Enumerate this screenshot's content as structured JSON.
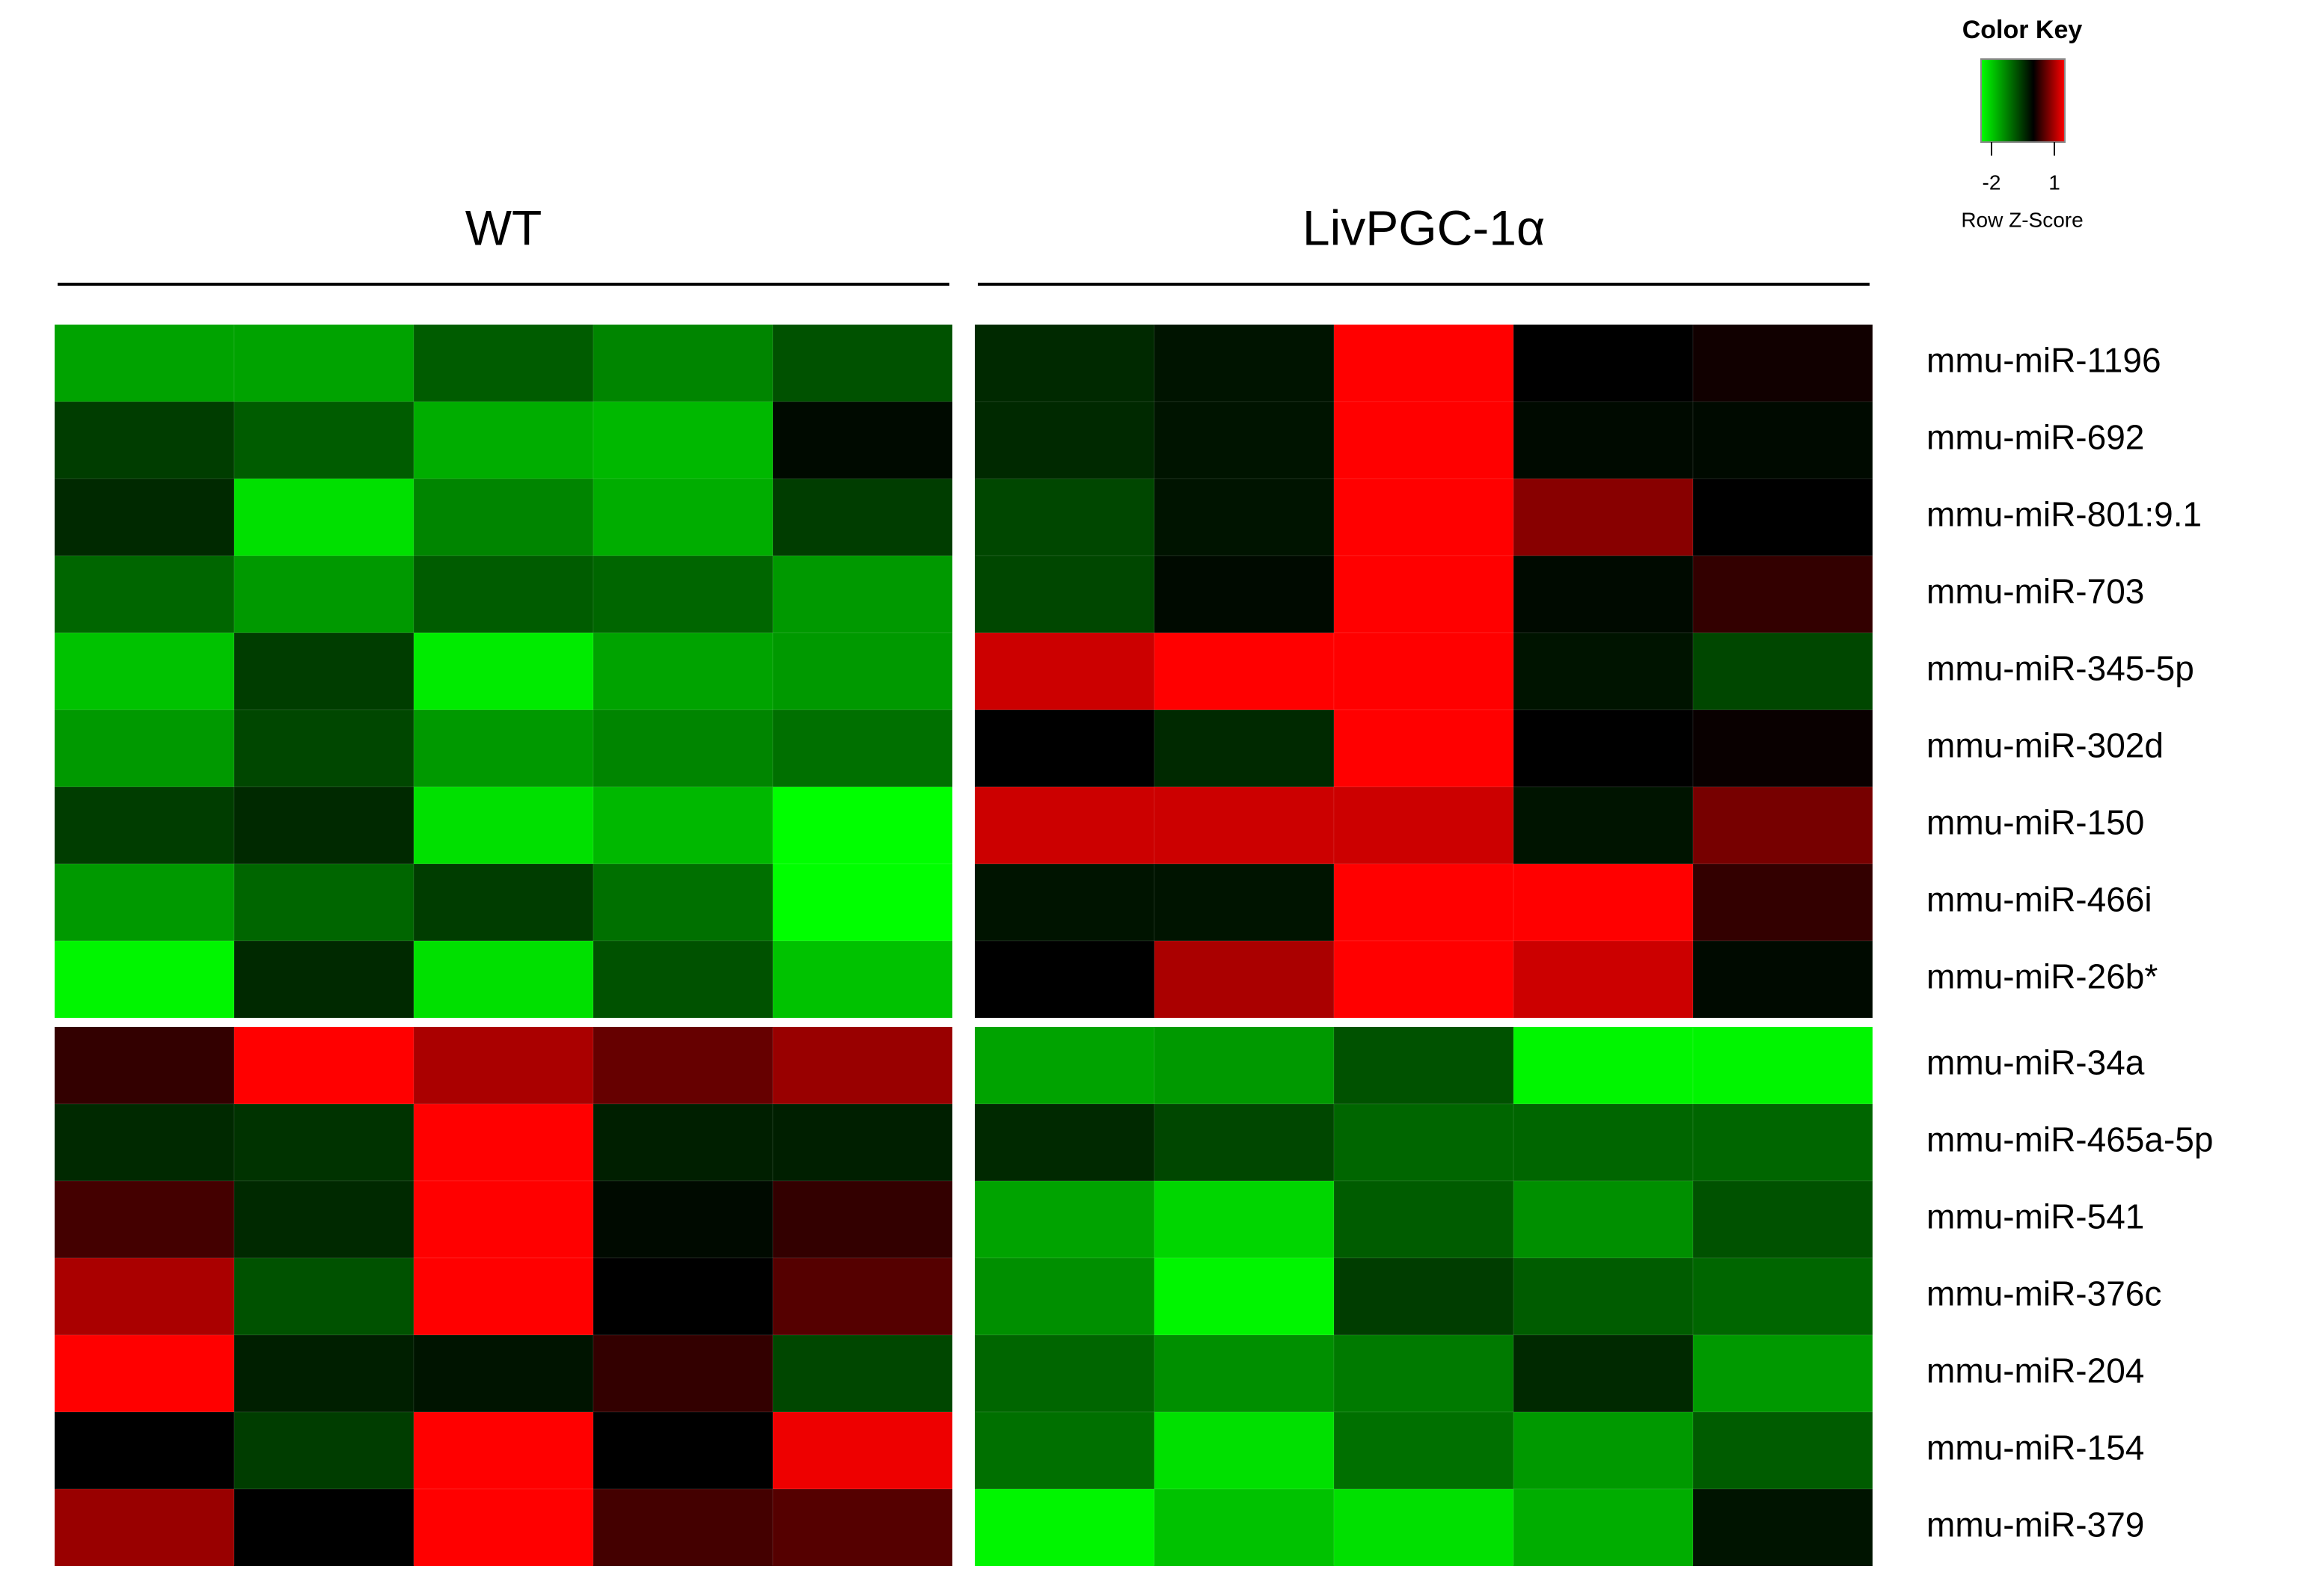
{
  "chart_data": {
    "type": "heatmap",
    "x_groups": [
      "WT",
      "LivPGC-1α"
    ],
    "y": [
      "mmu-miR-1196",
      "mmu-miR-692",
      "mmu-miR-801:9.1",
      "mmu-miR-703",
      "mmu-miR-345-5p",
      "mmu-miR-302d",
      "mmu-miR-150",
      "mmu-miR-466i",
      "mmu-miR-26b*",
      "mmu-miR-34a",
      "mmu-miR-465a-5p",
      "mmu-miR-541",
      "mmu-miR-376c",
      "mmu-miR-204",
      "mmu-miR-154",
      "mmu-miR-379"
    ],
    "values": [
      [
        -1.6,
        -1.6,
        -0.9,
        -1.3,
        -0.8,
        -0.4,
        -0.2,
        1.5,
        0.0,
        0.1
      ],
      [
        -0.6,
        -0.9,
        -1.7,
        -1.8,
        -0.1,
        -0.4,
        -0.2,
        1.5,
        -0.1,
        -0.1
      ],
      [
        -0.4,
        -2.2,
        -1.3,
        -1.7,
        -0.6,
        -0.7,
        -0.2,
        1.5,
        0.8,
        0.0
      ],
      [
        -1.0,
        -1.5,
        -0.9,
        -1.0,
        -1.5,
        -0.7,
        -0.1,
        1.5,
        -0.1,
        0.3
      ],
      [
        -1.9,
        -0.6,
        -2.3,
        -1.6,
        -1.5,
        1.2,
        1.5,
        1.5,
        -0.2,
        -0.7
      ],
      [
        -1.5,
        -0.7,
        -1.5,
        -1.3,
        -1.1,
        0.0,
        -0.4,
        1.5,
        0.0,
        0.05
      ],
      [
        -0.6,
        -0.4,
        -2.2,
        -1.8,
        -2.5,
        1.2,
        1.2,
        1.2,
        -0.2,
        0.7
      ],
      [
        -1.5,
        -1.0,
        -0.6,
        -1.1,
        -2.5,
        -0.2,
        -0.2,
        1.5,
        1.5,
        0.3
      ],
      [
        -2.4,
        -0.4,
        -2.2,
        -0.8,
        -1.9,
        0.0,
        1.0,
        1.5,
        1.2,
        -0.1
      ],
      [
        0.3,
        1.5,
        1.0,
        0.6,
        0.9,
        -1.6,
        -1.5,
        -0.8,
        -2.4,
        -2.4
      ],
      [
        -0.4,
        -0.5,
        1.5,
        -0.3,
        -0.3,
        -0.4,
        -0.7,
        -1.0,
        -1.0,
        -1.0
      ],
      [
        0.4,
        -0.4,
        1.5,
        -0.1,
        0.3,
        -1.6,
        -2.1,
        -0.9,
        -1.4,
        -0.8
      ],
      [
        1.0,
        -0.8,
        1.5,
        0.0,
        0.5,
        -1.4,
        -2.4,
        -0.6,
        -0.9,
        -1.0
      ],
      [
        1.5,
        -0.3,
        -0.2,
        0.3,
        -0.7,
        -1.0,
        -1.4,
        -1.2,
        -0.4,
        -1.5
      ],
      [
        0.0,
        -0.6,
        1.5,
        0.0,
        1.4,
        -1.1,
        -2.2,
        -1.1,
        -1.5,
        -0.9
      ],
      [
        0.9,
        0.0,
        1.5,
        0.4,
        0.5,
        -2.4,
        -1.9,
        -2.2,
        -1.7,
        -0.2
      ]
    ],
    "colormap": [
      "#00ff00",
      "#000000",
      "#ff0000"
    ],
    "color_key": {
      "title": "Color Key",
      "label": "Row Z-Score",
      "clim": [
        -2.5,
        1.5
      ],
      "ticks": [
        -2,
        1
      ]
    }
  }
}
